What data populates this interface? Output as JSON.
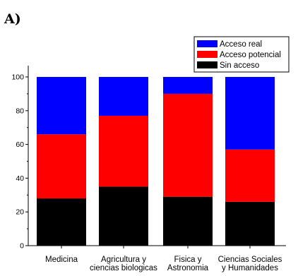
{
  "panel_label": "A)",
  "chart_data": {
    "type": "bar",
    "stacked": true,
    "categories": [
      [
        "Medicina"
      ],
      [
        "Agricultura y",
        "ciencias biologicas"
      ],
      [
        "Fisica y",
        "Astronomia"
      ],
      [
        "Ciencias Sociales",
        "y Humanidades"
      ]
    ],
    "series": [
      {
        "name": "Sin acceso",
        "color": "#000000",
        "values": [
          28,
          35,
          29,
          26
        ]
      },
      {
        "name": "Acceso potencial",
        "color": "#ff0000",
        "values": [
          38,
          42,
          61,
          31
        ]
      },
      {
        "name": "Acceso real",
        "color": "#0000ff",
        "values": [
          34,
          23,
          10,
          43
        ]
      }
    ],
    "legend_order": [
      "Acceso real",
      "Acceso potencial",
      "Sin acceso"
    ],
    "legend_position": "top-right",
    "yticks": [
      0,
      20,
      40,
      60,
      80,
      100
    ],
    "ylim": [
      0,
      100
    ],
    "title": "",
    "xlabel": "",
    "ylabel": "",
    "grid": false
  }
}
